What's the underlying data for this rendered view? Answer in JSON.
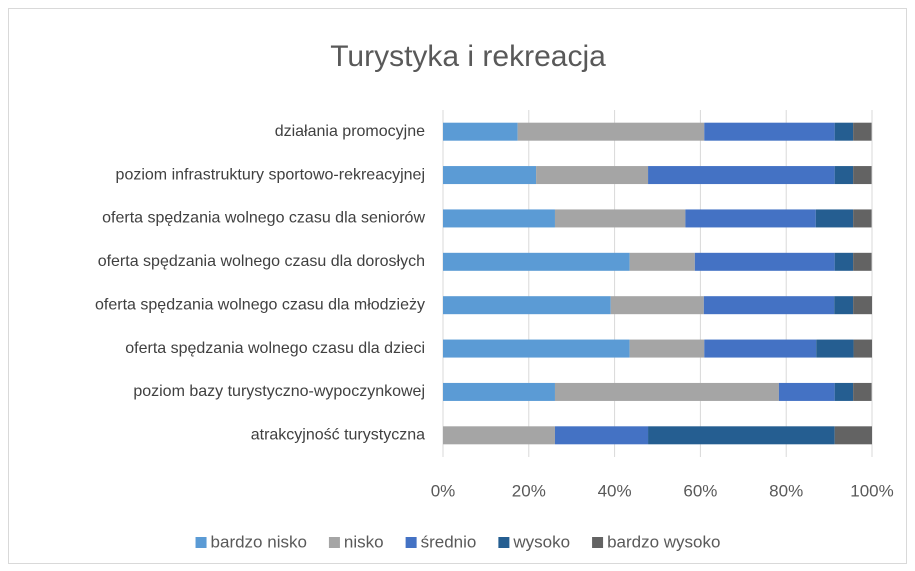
{
  "chart_data": {
    "type": "stacked_barh",
    "title": "Turystyka i rekreacja",
    "categories": [
      "działania promocyjne",
      "poziom  infrastruktury sportowo-rekreacyjnej",
      "oferta spędzania wolnego czasu dla seniorów",
      "oferta spędzania wolnego czasu dla dorosłych",
      "oferta spędzania wolnego czasu dla młodzieży",
      "oferta spędzania wolnego czasu dla dzieci",
      "poziom bazy turystyczno-wypoczynkowej",
      "atrakcyjność turystyczna"
    ],
    "series": [
      {
        "name": "bardzo nisko",
        "color": "#5b9bd5",
        "values": [
          17.4,
          21.7,
          26.1,
          43.5,
          39.1,
          43.5,
          26.1,
          0
        ]
      },
      {
        "name": "nisko",
        "color": "#a5a5a5",
        "values": [
          43.5,
          26.1,
          30.4,
          15.2,
          21.7,
          17.4,
          52.2,
          26.1
        ]
      },
      {
        "name": "średnio",
        "color": "#4472c4",
        "values": [
          30.4,
          43.5,
          30.4,
          32.6,
          30.4,
          26.1,
          13.0,
          21.7
        ]
      },
      {
        "name": "wysoko",
        "color": "#255e91",
        "values": [
          4.3,
          4.3,
          8.7,
          4.3,
          4.4,
          8.7,
          4.3,
          43.5
        ]
      },
      {
        "name": "bardzo wysoko",
        "color": "#636363",
        "values": [
          4.3,
          4.3,
          4.3,
          4.3,
          4.4,
          4.3,
          4.3,
          8.7
        ]
      }
    ],
    "xlim": [
      0,
      100
    ],
    "xticks": [
      {
        "value": 0,
        "label": "0%"
      },
      {
        "value": 20,
        "label": "20%"
      },
      {
        "value": 40,
        "label": "40%"
      },
      {
        "value": 60,
        "label": "60%"
      },
      {
        "value": 80,
        "label": "80%"
      },
      {
        "value": 100,
        "label": "100%"
      }
    ],
    "grid": true,
    "legend": "bottom"
  }
}
